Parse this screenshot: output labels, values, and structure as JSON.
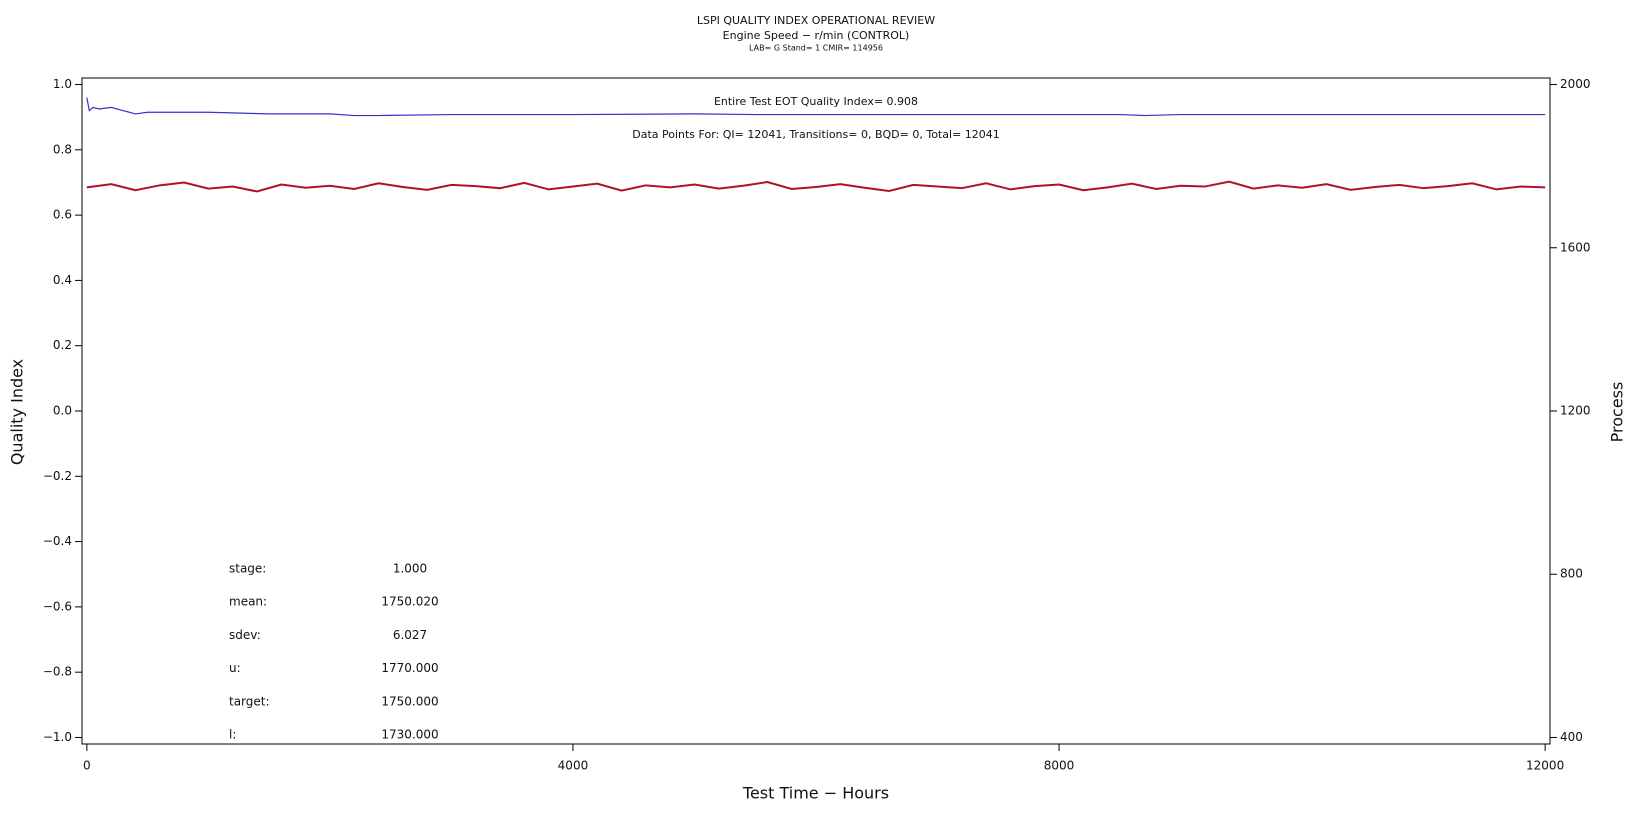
{
  "chart_data": {
    "type": "line",
    "title": "LSPI QUALITY INDEX OPERATIONAL REVIEW",
    "subtitle": "Engine Speed − r/min (CONTROL)",
    "subtitle2": "LAB= G Stand= 1 CMIR= 114956",
    "xlabel": "Test Time − Hours",
    "ylabel": "Quality Index",
    "y2label": "Process",
    "annotations": [
      "Entire Test EOT Quality Index=   0.908",
      "Data Points For: QI= 12041, Transitions=     0, BQD=     0, Total= 12041"
    ],
    "stats": [
      {
        "label": "stage:",
        "value": "1.000"
      },
      {
        "label": "mean:",
        "value": "1750.020"
      },
      {
        "label": "sdev:",
        "value": "6.027"
      },
      {
        "label": "u:",
        "value": "1770.000"
      },
      {
        "label": "target:",
        "value": "1750.000"
      },
      {
        "label": "l:",
        "value": "1730.000"
      }
    ],
    "xlim": [
      -40,
      12040
    ],
    "xticks": [
      0,
      4000,
      8000,
      12000
    ],
    "ylim": [
      -1.02,
      1.02
    ],
    "yticks": [
      {
        "value": -1,
        "label": "−1.0"
      },
      {
        "value": -0.8,
        "label": "−0.8"
      },
      {
        "value": -0.6,
        "label": "−0.6"
      },
      {
        "value": -0.4,
        "label": "−0.4"
      },
      {
        "value": -0.2,
        "label": "−0.2"
      },
      {
        "value": 0,
        "label": "0.0"
      },
      0.2,
      0.4,
      0.6,
      0.8,
      {
        "value": 1,
        "label": "1.0"
      }
    ],
    "y2lim": [
      384,
      2016
    ],
    "y2ticks": [
      400,
      800,
      1200,
      1600,
      2000
    ],
    "series": [
      {
        "color": "#3333cc",
        "x": [
          0,
          20,
          50,
          100,
          200,
          300,
          400,
          500,
          700,
          1000,
          1500,
          2000,
          2200,
          2400,
          3000,
          4000,
          5000,
          5500,
          6000,
          7000,
          8000,
          8500,
          8700,
          9000,
          9500,
          10000,
          11000,
          12000
        ],
        "values": [
          0.96,
          0.92,
          0.93,
          0.925,
          0.93,
          0.92,
          0.91,
          0.915,
          0.915,
          0.915,
          0.91,
          0.91,
          0.905,
          0.905,
          0.908,
          0.908,
          0.91,
          0.908,
          0.908,
          0.908,
          0.908,
          0.908,
          0.905,
          0.908,
          0.908,
          0.908,
          0.908,
          0.908
        ]
      },
      {
        "color": "#b0102a",
        "axis": "y2",
        "x": [
          0,
          200,
          400,
          600,
          800,
          1000,
          1200,
          1400,
          1600,
          1800,
          2000,
          2200,
          2400,
          2600,
          2800,
          3000,
          3200,
          3400,
          3600,
          3800,
          4000,
          4200,
          4400,
          4600,
          4800,
          5000,
          5200,
          5400,
          5600,
          5800,
          6000,
          6200,
          6400,
          6600,
          6800,
          7000,
          7200,
          7400,
          7600,
          7800,
          8000,
          8200,
          8400,
          8600,
          8800,
          9000,
          9200,
          9400,
          9600,
          9800,
          10000,
          10200,
          10400,
          10600,
          10800,
          11000,
          11200,
          11400,
          11600,
          11800,
          12000
        ],
        "values": [
          1748,
          1756,
          1741,
          1753,
          1760,
          1745,
          1750,
          1738,
          1755,
          1747,
          1752,
          1744,
          1758,
          1749,
          1742,
          1754,
          1751,
          1746,
          1759,
          1743,
          1750,
          1757,
          1740,
          1753,
          1748,
          1755,
          1745,
          1752,
          1761,
          1744,
          1749,
          1756,
          1747,
          1739,
          1754,
          1750,
          1746,
          1758,
          1743,
          1751,
          1755,
          1741,
          1748,
          1757,
          1744,
          1752,
          1750,
          1762,
          1745,
          1753,
          1747,
          1756,
          1742,
          1749,
          1754,
          1746,
          1751,
          1758,
          1743,
          1750,
          1748
        ]
      }
    ]
  }
}
